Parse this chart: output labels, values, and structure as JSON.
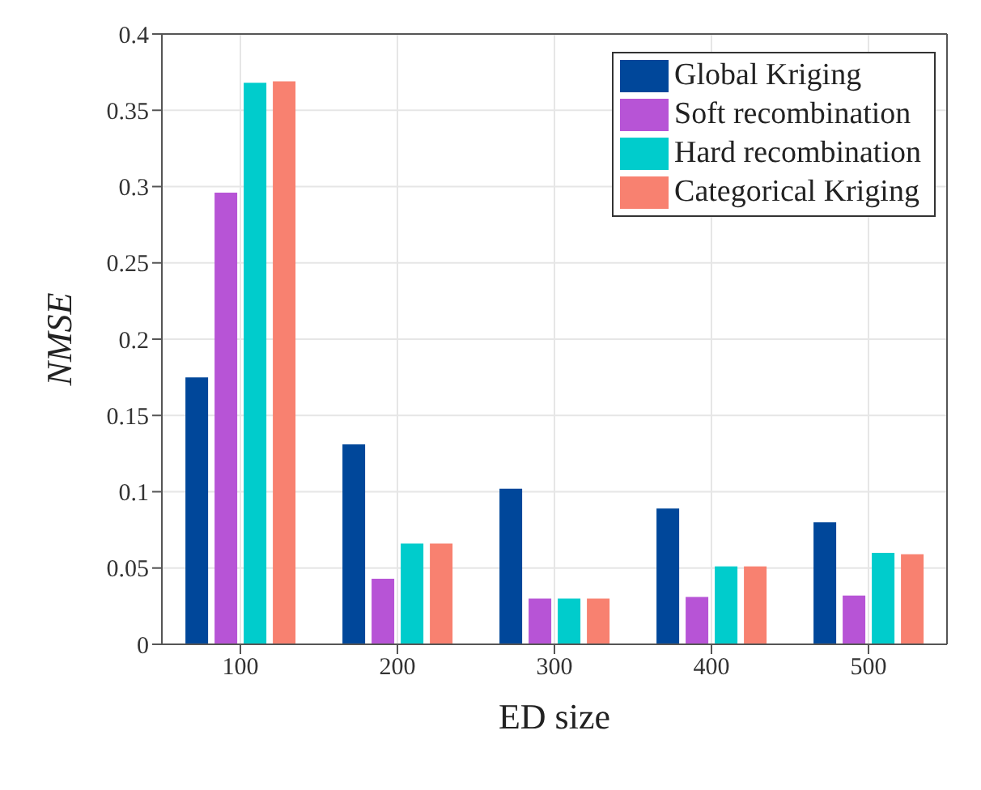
{
  "chart_data": {
    "type": "bar",
    "xlabel": "ED size",
    "ylabel": "NMSE",
    "categories": [
      "100",
      "200",
      "300",
      "400",
      "500"
    ],
    "series": [
      {
        "name": "Global Kriging",
        "color": "#00479a",
        "values": [
          0.175,
          0.131,
          0.102,
          0.089,
          0.08
        ]
      },
      {
        "name": "Soft recombination",
        "color": "#b754d6",
        "values": [
          0.296,
          0.043,
          0.03,
          0.031,
          0.032
        ]
      },
      {
        "name": "Hard recombination",
        "color": "#00cccc",
        "values": [
          0.368,
          0.066,
          0.03,
          0.051,
          0.06
        ]
      },
      {
        "name": "Categorical Kriging",
        "color": "#f88170",
        "values": [
          0.369,
          0.066,
          0.03,
          0.051,
          0.059
        ]
      }
    ],
    "ylim": [
      0,
      0.4
    ],
    "yticks": [
      0,
      0.05,
      0.1,
      0.15,
      0.2,
      0.25,
      0.3,
      0.35,
      0.4
    ],
    "grid": true,
    "legend": "top right"
  }
}
